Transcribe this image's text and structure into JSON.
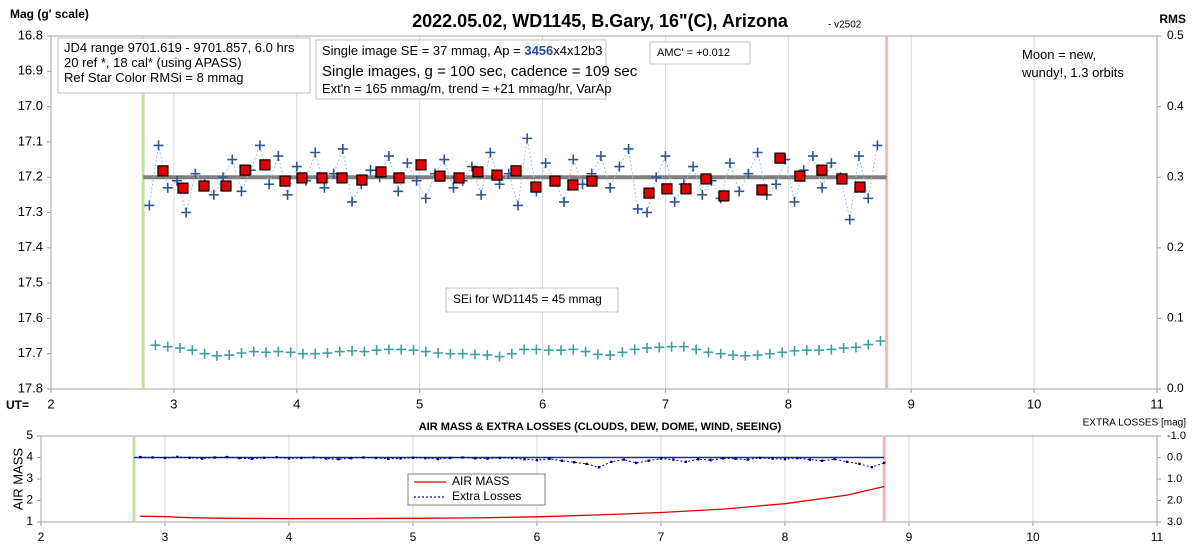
{
  "chart_data": [
    {
      "type": "scatter",
      "title": "2022.05.02, WD1145, B.Gary, 16\"(C), Arizona",
      "subtitle": "- v2502",
      "ylabel": "Mag (g' scale)",
      "y2label": "RMS",
      "xlabel": "UT=",
      "xlim": [
        2,
        11
      ],
      "xticks": [
        2,
        3,
        4,
        5,
        6,
        7,
        8,
        9,
        10,
        11
      ],
      "ylim": [
        17.8,
        16.8
      ],
      "yticks": [
        16.8,
        16.9,
        {
          "value": 17,
          "label": "17.0"
        },
        17.1,
        17.2,
        17.3,
        17.4,
        17.5,
        17.6,
        17.7,
        17.8
      ],
      "y2lim": [
        0,
        0.5
      ],
      "y2ticks": [
        {
          "value": 0,
          "label": "0.0"
        },
        0.1,
        0.2,
        0.3,
        0.4,
        0.5
      ],
      "grid": "x",
      "vlines": [
        {
          "x": 2.75,
          "color": "#c5e0a5"
        },
        {
          "x": 8.8,
          "color": "#f6b6b6"
        }
      ],
      "hlines": [
        {
          "y": 17.2,
          "x": [
            2.75,
            8.8
          ],
          "color": "#7f7f7f"
        }
      ],
      "annotations": [
        {
          "lines": [
            [
              {
                "text": "JD4 range 9701.619 - 9701.857, 6.0 hrs"
              }
            ],
            [
              {
                "text": "20 ref *, 18 cal* (using APASS)"
              }
            ],
            [
              {
                "text": "Ref Star Color RMSi = 8 mmag"
              }
            ]
          ]
        },
        {
          "lines": [
            [
              {
                "text": "Single image SE = 37 mmag, Ap = "
              },
              {
                "text": "3456",
                "color": "#1f4e9e"
              },
              {
                "text": "x4x12b3"
              }
            ],
            [
              {
                "text": "Single images, g = 100 sec, cadence = 109 sec"
              }
            ],
            [
              {
                "text": "Ext'n = 165 mmag/m, trend = +21 mmag/hr, VarAp"
              }
            ]
          ]
        },
        {
          "lines": [
            [
              {
                "text": "AMC' = +0.012"
              }
            ]
          ]
        },
        {
          "lines": [
            [
              {
                "text": "Moon = new,"
              }
            ],
            [
              {
                "text": "wundy!,  1.3 orbits"
              }
            ]
          ]
        },
        {
          "lines": [
            [
              {
                "text": "SEi for WD1145 = 45 mmag"
              }
            ]
          ]
        }
      ],
      "series": [
        {
          "color": "#2f5597",
          "line_color": "#9dc3e6",
          "marker": "plus",
          "line": "dotted",
          "x": [
            2.8,
            2.875,
            2.95,
            3.025,
            3.1,
            3.175,
            3.25,
            3.325,
            3.4,
            3.475,
            3.55,
            3.625,
            3.7,
            3.775,
            3.85,
            3.925,
            4,
            4.075,
            4.15,
            4.225,
            4.3,
            4.375,
            4.45,
            4.525,
            4.6,
            4.675,
            4.75,
            4.825,
            4.9,
            4.975,
            5.05,
            5.125,
            5.2,
            5.275,
            5.35,
            5.425,
            5.5,
            5.575,
            5.65,
            5.725,
            5.8,
            5.875,
            5.95,
            6.025,
            6.1,
            6.175,
            6.25,
            6.325,
            6.4,
            6.475,
            6.55,
            6.625,
            6.7,
            6.775,
            6.85,
            6.925,
            7,
            7.075,
            7.15,
            7.225,
            7.3,
            7.375,
            7.45,
            7.525,
            7.6,
            7.675,
            7.75,
            7.825,
            7.9,
            7.975,
            8.05,
            8.125,
            8.2,
            8.275,
            8.35,
            8.425,
            8.5,
            8.575,
            8.65,
            8.725
          ],
          "values": [
            17.28,
            17.11,
            17.23,
            17.21,
            17.3,
            17.19,
            17.22,
            17.25,
            17.2,
            17.15,
            17.24,
            17.18,
            17.11,
            17.22,
            17.14,
            17.25,
            17.17,
            17.21,
            17.13,
            17.23,
            17.19,
            17.12,
            17.27,
            17.22,
            17.18,
            17.2,
            17.14,
            17.24,
            17.16,
            17.21,
            17.26,
            17.19,
            17.15,
            17.23,
            17.21,
            17.17,
            17.25,
            17.13,
            17.22,
            17.19,
            17.28,
            17.09,
            17.24,
            17.16,
            17.21,
            17.27,
            17.15,
            17.22,
            17.19,
            17.14,
            17.23,
            17.17,
            17.12,
            17.29,
            17.3,
            17.2,
            17.14,
            17.27,
            17.22,
            17.17,
            17.25,
            17.21,
            17.26,
            17.16,
            17.24,
            17.19,
            17.13,
            17.25,
            17.22,
            17.15,
            17.27,
            17.18,
            17.14,
            17.23,
            17.16,
            17.2,
            17.32,
            17.14,
            17.26,
            17.11
          ]
        },
        {
          "color": "#e00000",
          "marker": "square",
          "line": "none",
          "x": [
            2.911,
            3.074,
            3.245,
            3.424,
            3.579,
            3.741,
            3.904,
            4.042,
            4.205,
            4.368,
            4.53,
            4.685,
            4.832,
            5.011,
            5.165,
            5.32,
            5.474,
            5.629,
            5.784,
            5.946,
            6.101,
            6.247,
            6.402,
            6.866,
            7.012,
            7.167,
            7.33,
            7.476,
            7.785,
            7.932,
            8.094,
            8.273,
            8.436,
            8.583
          ],
          "values": [
            17.182,
            17.231,
            17.225,
            17.225,
            17.18,
            17.165,
            17.211,
            17.202,
            17.202,
            17.202,
            17.208,
            17.185,
            17.202,
            17.165,
            17.197,
            17.202,
            17.185,
            17.194,
            17.182,
            17.228,
            17.211,
            17.222,
            17.211,
            17.245,
            17.233,
            17.233,
            17.205,
            17.253,
            17.236,
            17.146,
            17.197,
            17.18,
            17.205,
            17.228
          ]
        },
        {
          "color": "#3d9fa0",
          "marker": "plus",
          "line": "none",
          "axis": "y2",
          "x": [
            2.85,
            2.95,
            3.05,
            3.15,
            3.25,
            3.35,
            3.45,
            3.55,
            3.65,
            3.75,
            3.85,
            3.95,
            4.05,
            4.15,
            4.25,
            4.35,
            4.45,
            4.55,
            4.65,
            4.75,
            4.85,
            4.95,
            5.05,
            5.15,
            5.25,
            5.35,
            5.45,
            5.55,
            5.65,
            5.75,
            5.85,
            5.95,
            6.05,
            6.15,
            6.25,
            6.35,
            6.45,
            6.55,
            6.65,
            6.75,
            6.85,
            6.95,
            7.05,
            7.15,
            7.25,
            7.35,
            7.45,
            7.55,
            7.65,
            7.75,
            7.85,
            7.95,
            8.05,
            8.15,
            8.25,
            8.35,
            8.45,
            8.55,
            8.65,
            8.75
          ],
          "values": [
            0.062,
            0.06,
            0.058,
            0.055,
            0.05,
            0.047,
            0.048,
            0.051,
            0.053,
            0.052,
            0.053,
            0.052,
            0.05,
            0.05,
            0.051,
            0.053,
            0.054,
            0.053,
            0.055,
            0.056,
            0.056,
            0.055,
            0.053,
            0.051,
            0.05,
            0.05,
            0.049,
            0.048,
            0.046,
            0.05,
            0.056,
            0.056,
            0.055,
            0.055,
            0.056,
            0.053,
            0.049,
            0.048,
            0.052,
            0.056,
            0.058,
            0.059,
            0.06,
            0.06,
            0.056,
            0.052,
            0.05,
            0.048,
            0.047,
            0.048,
            0.05,
            0.052,
            0.054,
            0.055,
            0.055,
            0.056,
            0.058,
            0.059,
            0.063,
            0.068
          ]
        }
      ]
    },
    {
      "type": "line",
      "title": "AIR MASS & EXTRA LOSSES (CLOUDS, DEW, DOME, WIND, SEEING)",
      "ylabel": "AIR MASS",
      "y2label": "EXTRA LOSSES [mag]",
      "xlim": [
        2,
        11
      ],
      "xticks": [
        2,
        3,
        4,
        5,
        6,
        7,
        8,
        9,
        10,
        11
      ],
      "ylim": [
        1,
        5
      ],
      "yticks": [
        1,
        2,
        3,
        4,
        5
      ],
      "y2lim": [
        3,
        -1
      ],
      "y2ticks": [
        {
          "value": 3,
          "label": "3.0"
        },
        {
          "value": 2,
          "label": "2.0"
        },
        {
          "value": 1,
          "label": "1.0"
        },
        {
          "value": 0,
          "label": "0.0"
        },
        {
          "value": -1,
          "label": "-1.0"
        }
      ],
      "grid": "x",
      "vlines": [
        {
          "x": 2.75,
          "color": "#c5e0a5"
        },
        {
          "x": 8.8,
          "color": "#f6b6b6"
        }
      ],
      "hlines": [
        {
          "y": 0,
          "x": [
            2.75,
            8.8
          ],
          "color": "#1f3080",
          "axis": "y2"
        }
      ],
      "series": [
        {
          "name": "AIR MASS",
          "color": "#e00000",
          "marker": "none",
          "line": "solid",
          "x": [
            2.8,
            3.0,
            3.2,
            3.5,
            4.0,
            4.5,
            5.0,
            5.5,
            6.0,
            6.5,
            7.0,
            7.5,
            8.0,
            8.5,
            8.8
          ],
          "values": [
            1.27,
            1.25,
            1.2,
            1.17,
            1.16,
            1.16,
            1.17,
            1.19,
            1.24,
            1.33,
            1.44,
            1.6,
            1.85,
            2.25,
            2.65
          ]
        },
        {
          "name": "Extra Losses",
          "color": "#00008b",
          "marker": "dot",
          "line": "dotted",
          "axis": "y2",
          "x": [
            2.8,
            2.9,
            3.0,
            3.1,
            3.2,
            3.3,
            3.4,
            3.5,
            3.6,
            3.7,
            3.8,
            3.9,
            4.0,
            4.1,
            4.2,
            4.3,
            4.4,
            4.5,
            4.6,
            4.7,
            4.8,
            4.9,
            5.0,
            5.1,
            5.2,
            5.3,
            5.4,
            5.5,
            5.6,
            5.7,
            5.8,
            5.9,
            6.0,
            6.1,
            6.2,
            6.3,
            6.4,
            6.5,
            6.6,
            6.7,
            6.8,
            6.9,
            7.0,
            7.1,
            7.2,
            7.3,
            7.4,
            7.5,
            7.6,
            7.7,
            7.8,
            7.9,
            8.0,
            8.1,
            8.2,
            8.3,
            8.4,
            8.5,
            8.6,
            8.7,
            8.8
          ],
          "values": [
            -0.02,
            0.0,
            0.02,
            -0.03,
            0.01,
            0.05,
            0.0,
            -0.02,
            0.03,
            0.06,
            0.01,
            -0.01,
            0.04,
            0.02,
            0.0,
            0.05,
            0.08,
            0.03,
            0.0,
            0.02,
            0.06,
            0.04,
            0.01,
            0.03,
            0.07,
            0.02,
            0.0,
            0.04,
            0.05,
            0.02,
            0.03,
            0.08,
            0.12,
            0.06,
            0.15,
            0.22,
            0.3,
            0.45,
            0.2,
            0.1,
            0.25,
            0.15,
            0.05,
            0.1,
            0.2,
            0.08,
            0.12,
            0.04,
            0.06,
            0.1,
            0.02,
            0.05,
            0.08,
            0.03,
            0.1,
            0.15,
            0.08,
            0.2,
            0.3,
            0.45,
            0.25
          ]
        }
      ]
    }
  ]
}
